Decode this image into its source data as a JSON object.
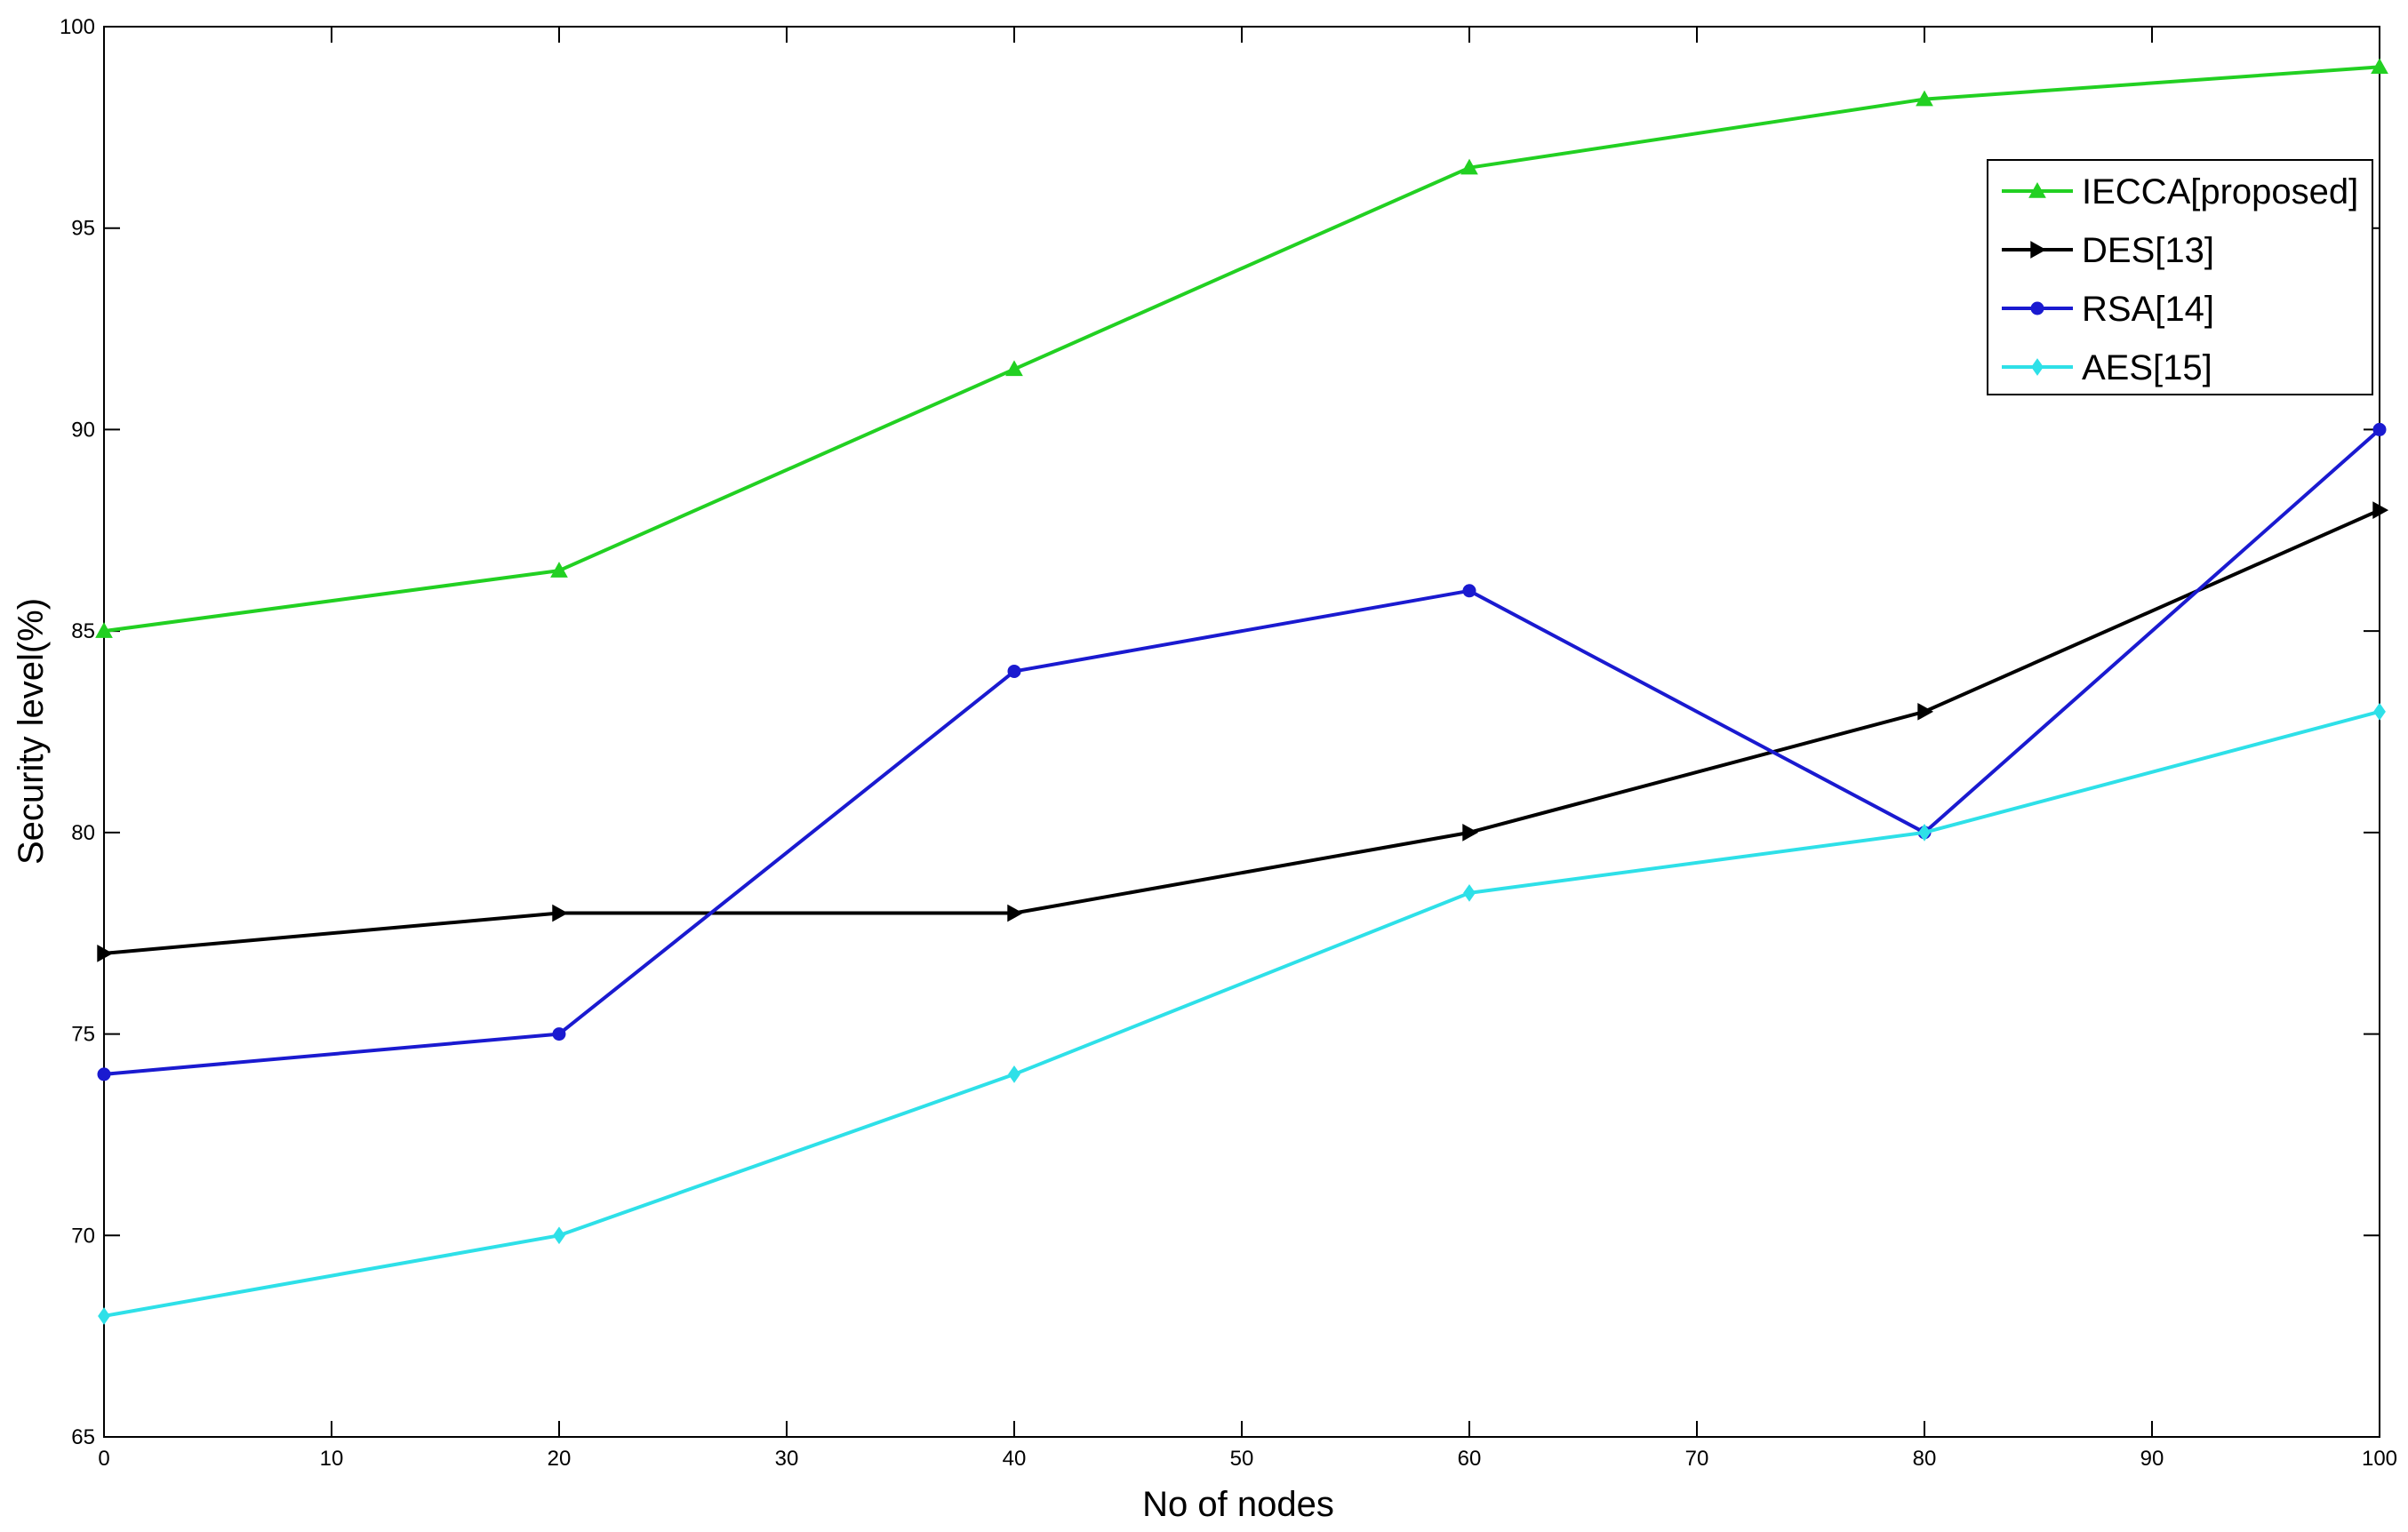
{
  "chart_data": {
    "type": "line",
    "title": "",
    "xlabel": "No of nodes",
    "ylabel": "Security level(%)",
    "xlim": [
      0,
      100
    ],
    "ylim": [
      65,
      100
    ],
    "xticks": [
      "0",
      "10",
      "20",
      "30",
      "40",
      "50",
      "60",
      "70",
      "80",
      "90",
      "100"
    ],
    "yticks": [
      "65",
      "70",
      "75",
      "80",
      "85",
      "90",
      "95",
      "100"
    ],
    "grid": false,
    "legend_position": "top-right",
    "x": [
      0,
      20,
      40,
      60,
      80,
      100
    ],
    "series": [
      {
        "name": "IECCA[proposed]",
        "color": "#22d022",
        "marker": "triangle-up",
        "values": [
          85,
          86.5,
          91.5,
          96.5,
          98.2,
          99
        ]
      },
      {
        "name": "DES[13]",
        "color": "#000000",
        "marker": "triangle-right",
        "values": [
          77,
          78,
          78,
          80,
          83,
          88
        ]
      },
      {
        "name": "RSA[14]",
        "color": "#1a1ad0",
        "marker": "circle",
        "values": [
          74,
          75,
          84,
          86,
          80,
          90
        ]
      },
      {
        "name": "AES[15]",
        "color": "#2ee0e8",
        "marker": "diamond",
        "values": [
          68,
          70,
          74,
          78.5,
          80,
          83
        ]
      }
    ]
  }
}
